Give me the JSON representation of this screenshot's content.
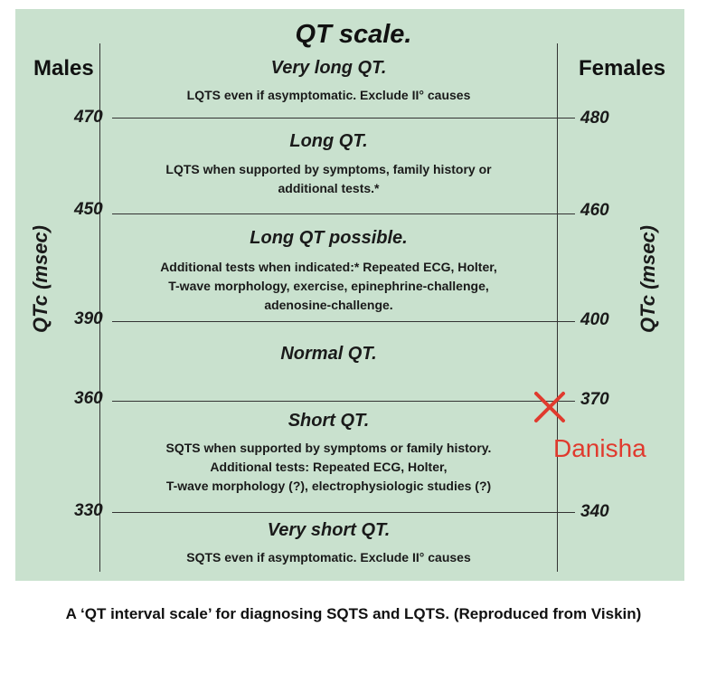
{
  "diagram": {
    "title": "QT scale.",
    "males_label": "Males",
    "females_label": "Females",
    "axis_label": "QTc (msec)",
    "males_ticks": [
      "470",
      "450",
      "390",
      "360",
      "330"
    ],
    "females_ticks": [
      "480",
      "460",
      "400",
      "370",
      "340"
    ],
    "zones": [
      {
        "title": "Very long QT.",
        "lines": [
          "LQTS even if asymptomatic. Exclude II° causes"
        ]
      },
      {
        "title": "Long QT.",
        "lines": [
          "LQTS when supported by symptoms, family history or",
          "additional tests.*"
        ]
      },
      {
        "title": "Long QT possible.",
        "lines": [
          "Additional tests when indicated:* Repeated ECG, Holter,",
          "T-wave morphology, exercise, epinephrine-challenge,",
          "adenosine-challenge."
        ]
      },
      {
        "title": "Normal QT.",
        "lines": []
      },
      {
        "title": "Short QT.",
        "lines": [
          "SQTS when supported by symptoms or family history.",
          "Additional tests: Repeated ECG, Holter,",
          "T-wave morphology (?), electrophysiologic studies (?)"
        ]
      },
      {
        "title": "Very short QT.",
        "lines": [
          "SQTS even if asymptomatic. Exclude II° causes"
        ]
      }
    ],
    "annotation": {
      "text": "Danisha",
      "mark": "x-mark-icon",
      "color": "#e03a2e"
    }
  },
  "caption": "A ‘QT interval scale’ for diagnosing SQTS and LQTS. (Reproduced from Viskin)"
}
